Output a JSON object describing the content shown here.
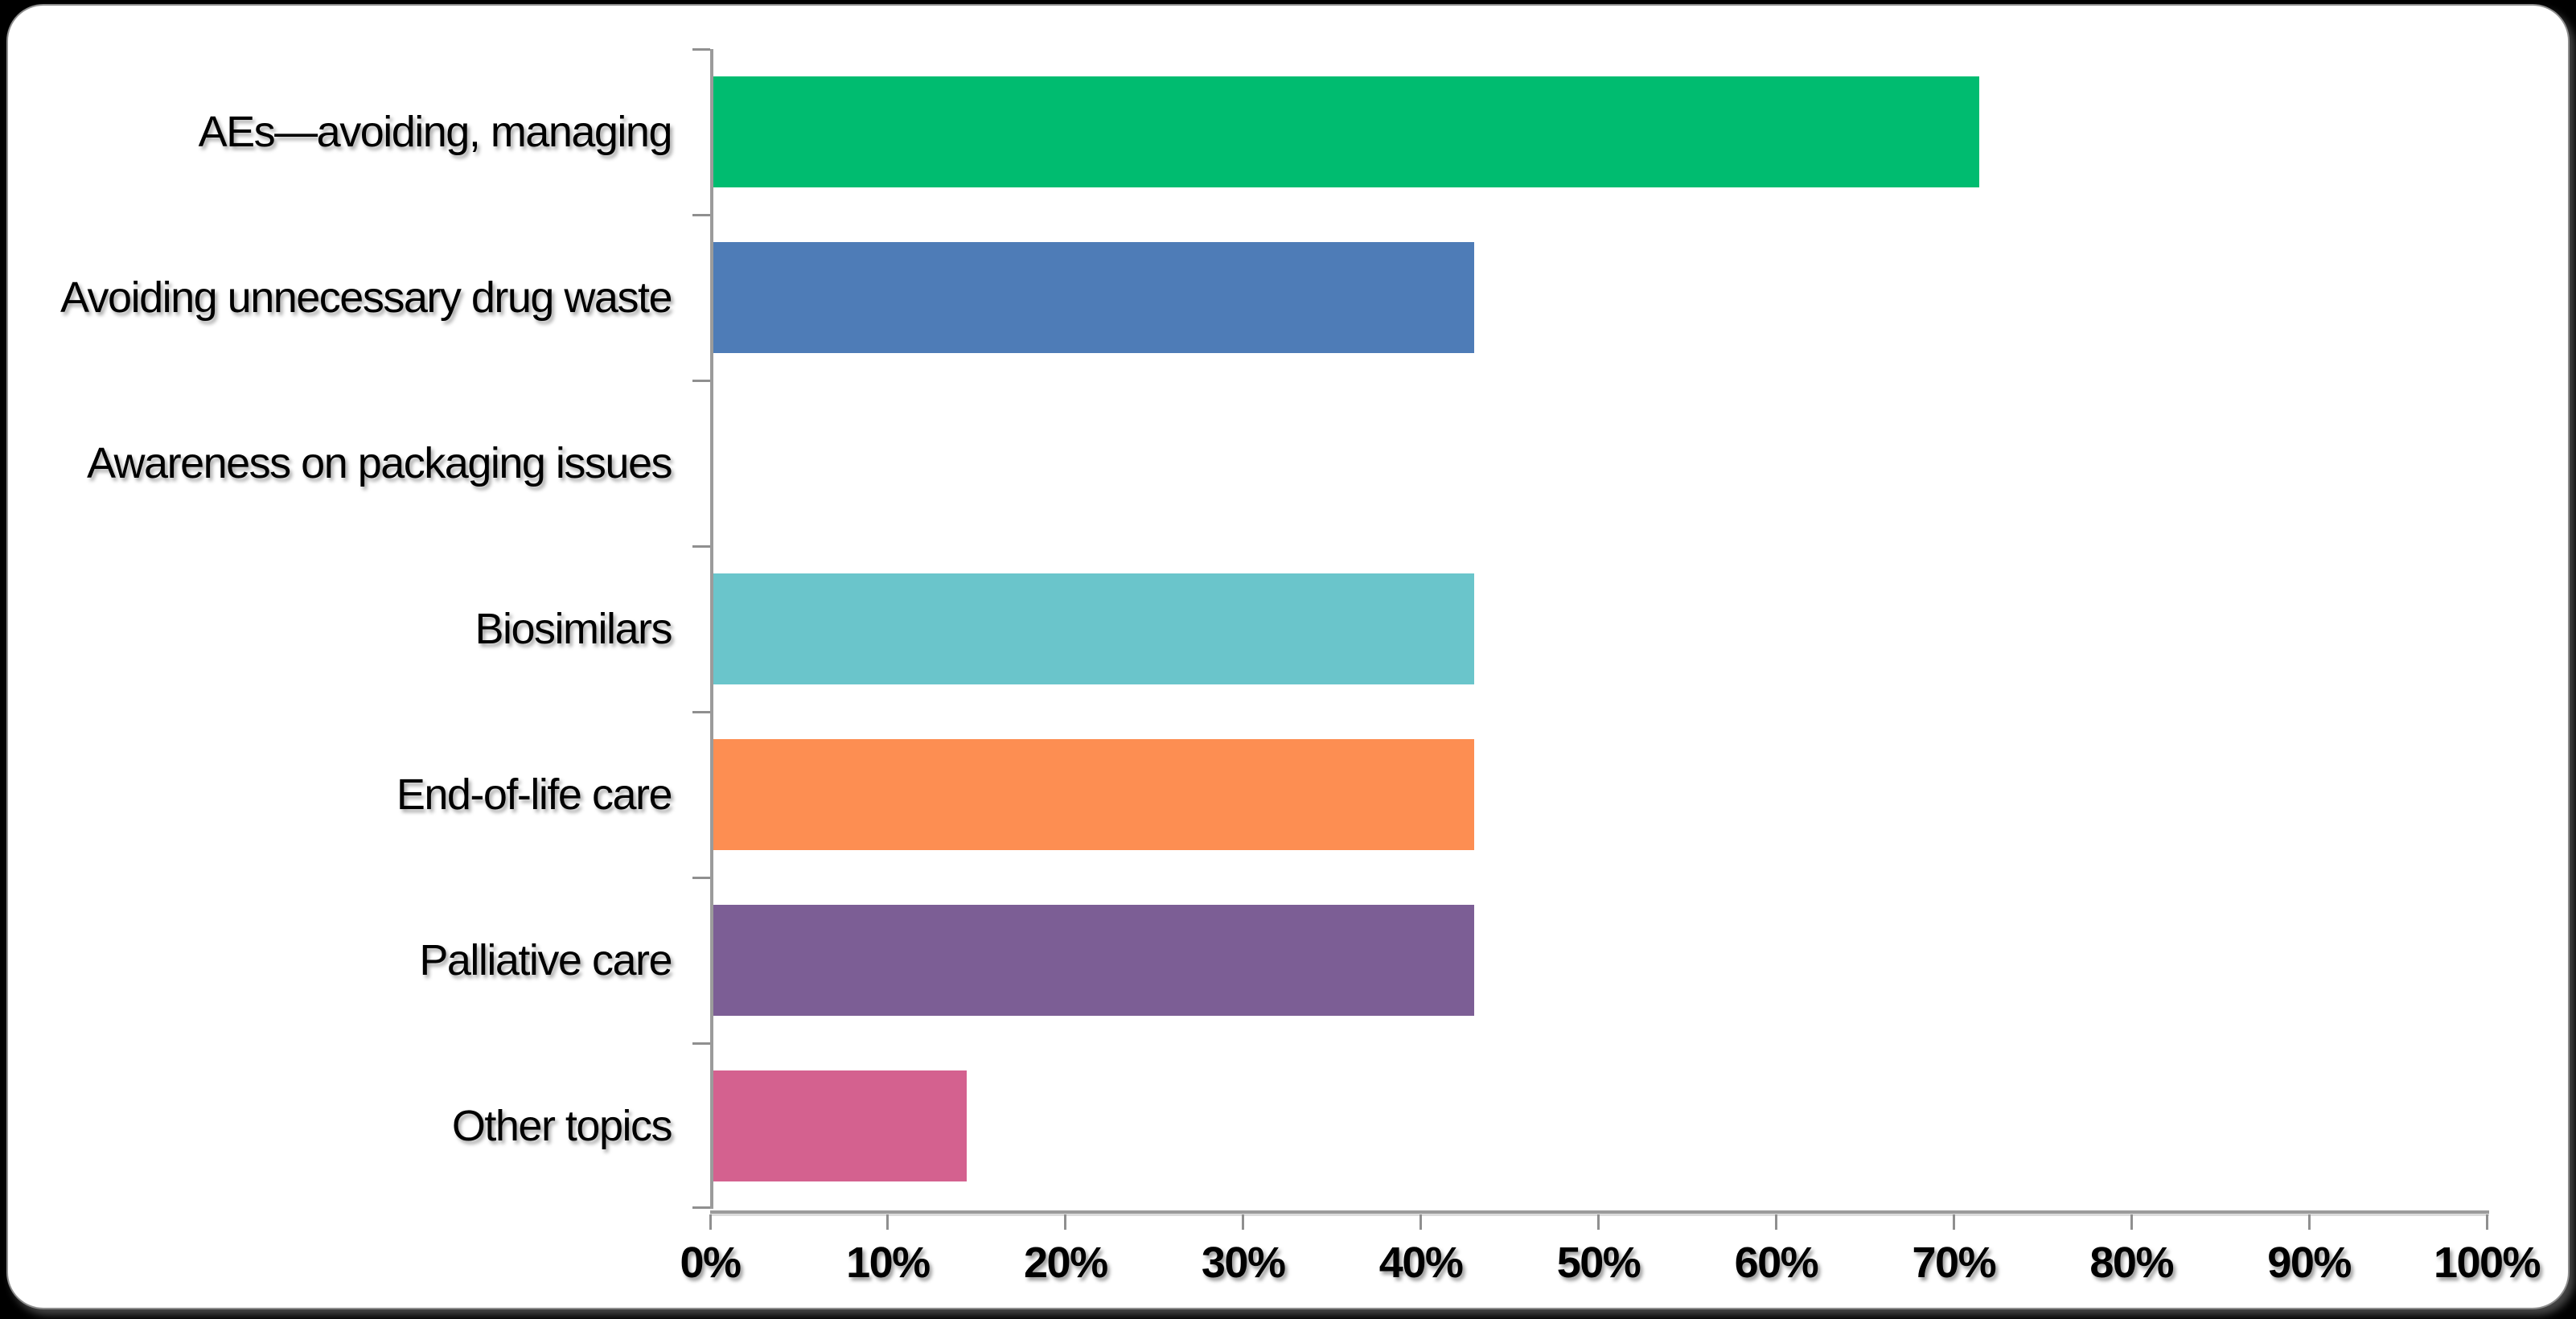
{
  "page": {
    "background_color": "#000000"
  },
  "card": {
    "background_color": "#FFFFFF",
    "border_color": "#8E8E8E"
  },
  "chart_data": {
    "type": "bar",
    "orientation": "horizontal",
    "title": "",
    "xlabel": "",
    "ylabel": "",
    "categories": [
      "AEs—avoiding, managing",
      "Avoiding unnecessary drug waste",
      "Awareness on packaging issues",
      "Biosimilars",
      "End-of-life care",
      "Palliative care",
      "Other topics"
    ],
    "values": [
      71.4,
      42.9,
      0,
      42.9,
      42.9,
      42.9,
      14.3
    ],
    "value_unit": "%",
    "series_point_colors": [
      "#00BC70",
      "#4E7CB7",
      null,
      "#6AC5CB",
      "#FD8E52",
      "#7C5E95",
      "#D4618F"
    ],
    "xlim": [
      0,
      100
    ],
    "x_tick_labels": [
      "0%",
      "10%",
      "20%",
      "30%",
      "40%",
      "50%",
      "60%",
      "70%",
      "80%",
      "90%",
      "100%"
    ],
    "grid": false,
    "legend": "none",
    "axis_line_color": "#9B9B9B",
    "tick_mark_color": "#8F8F8F",
    "label_text_color": "#000000"
  }
}
